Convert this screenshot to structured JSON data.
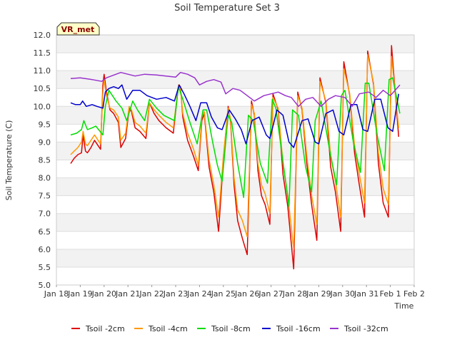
{
  "chart_data": {
    "type": "line",
    "title": "Soil Temperature Set 3",
    "xlabel": "Time",
    "ylabel": "Soil Temperature (C)",
    "badge": "VR_met",
    "colors": {
      "band": "#f2f2f2",
      "grid": "#dddddd",
      "badge_bg": "#ffffc8",
      "badge_border": "#333333"
    },
    "ylim": [
      5.0,
      12.0
    ],
    "xlim": [
      0,
      15
    ],
    "x_unit": "days since Jan 18",
    "yticks": [
      "5.0",
      "5.5",
      "6.0",
      "6.5",
      "7.0",
      "7.5",
      "8.0",
      "8.5",
      "9.0",
      "9.5",
      "10.0",
      "10.5",
      "11.0",
      "11.5",
      "12.0"
    ],
    "xticks": [
      "Jan 18",
      "Jan 19",
      "Jan 20",
      "Jan 21",
      "Jan 22",
      "Jan 23",
      "Jan 24",
      "Jan 25",
      "Jan 26",
      "Jan 27",
      "Jan 28",
      "Jan 29",
      "Jan 30",
      "Jan 31",
      "Feb 1",
      "Feb 2"
    ],
    "series": [
      {
        "name": "Tsoil -2cm",
        "color": "#dd0000",
        "x": [
          0.6,
          0.75,
          0.9,
          1.05,
          1.12,
          1.22,
          1.3,
          1.45,
          1.6,
          1.75,
          1.85,
          1.95,
          2.0,
          2.1,
          2.25,
          2.4,
          2.6,
          2.7,
          2.9,
          3.05,
          3.15,
          3.3,
          3.5,
          3.75,
          3.9,
          4.1,
          4.3,
          4.6,
          4.9,
          5.12,
          5.2,
          5.3,
          5.5,
          5.75,
          5.95,
          6.1,
          6.2,
          6.4,
          6.6,
          6.8,
          7.0,
          7.2,
          7.3,
          7.45,
          7.6,
          7.8,
          8.0,
          8.18,
          8.3,
          8.45,
          8.6,
          8.75,
          8.95,
          9.08,
          9.3,
          9.5,
          9.7,
          9.95,
          10.12,
          10.3,
          10.5,
          10.7,
          10.92,
          11.05,
          11.3,
          11.5,
          11.7,
          11.92,
          12.05,
          12.3,
          12.5,
          12.7,
          12.92,
          13.05,
          13.3,
          13.5,
          13.7,
          13.92,
          14.05,
          14.35
        ],
        "y": [
          8.4,
          8.55,
          8.65,
          8.7,
          9.2,
          8.75,
          8.7,
          8.85,
          9.05,
          8.9,
          8.8,
          10.6,
          10.9,
          10.4,
          9.9,
          9.8,
          9.55,
          8.85,
          9.1,
          9.95,
          9.85,
          9.4,
          9.3,
          9.1,
          10.1,
          9.8,
          9.6,
          9.4,
          9.25,
          10.6,
          10.55,
          9.7,
          9.05,
          8.6,
          8.2,
          9.6,
          9.8,
          8.3,
          7.6,
          6.5,
          8.5,
          10.0,
          9.6,
          7.8,
          6.8,
          6.3,
          5.85,
          10.15,
          9.75,
          8.2,
          7.5,
          7.25,
          6.7,
          10.35,
          9.9,
          8.1,
          7.2,
          5.45,
          10.4,
          9.9,
          8.4,
          7.25,
          6.25,
          10.8,
          10.1,
          8.3,
          7.6,
          6.5,
          11.25,
          10.3,
          8.7,
          7.8,
          6.9,
          11.55,
          10.6,
          8.4,
          7.3,
          6.9,
          11.7,
          9.15
        ]
      },
      {
        "name": "Tsoil -4cm",
        "color": "#ff9900",
        "x": [
          0.6,
          0.75,
          0.9,
          1.05,
          1.12,
          1.22,
          1.3,
          1.45,
          1.6,
          1.75,
          1.85,
          1.95,
          2.0,
          2.1,
          2.25,
          2.4,
          2.6,
          2.7,
          2.9,
          3.05,
          3.15,
          3.3,
          3.5,
          3.75,
          3.9,
          4.1,
          4.3,
          4.6,
          4.9,
          5.12,
          5.2,
          5.3,
          5.5,
          5.75,
          5.95,
          6.1,
          6.2,
          6.4,
          6.6,
          6.8,
          7.0,
          7.2,
          7.3,
          7.45,
          7.6,
          7.8,
          8.0,
          8.18,
          8.3,
          8.45,
          8.6,
          8.75,
          8.95,
          9.08,
          9.3,
          9.5,
          9.7,
          9.95,
          10.12,
          10.3,
          10.5,
          10.7,
          10.92,
          11.05,
          11.3,
          11.5,
          11.7,
          11.92,
          12.05,
          12.3,
          12.5,
          12.7,
          12.92,
          13.05,
          13.3,
          13.5,
          13.7,
          13.92,
          14.05,
          14.35
        ],
        "y": [
          8.65,
          8.75,
          8.85,
          9.0,
          9.3,
          8.95,
          8.9,
          9.05,
          9.2,
          9.05,
          8.95,
          10.4,
          10.75,
          10.3,
          9.95,
          9.9,
          9.7,
          9.05,
          9.25,
          10.0,
          9.9,
          9.55,
          9.45,
          9.25,
          10.1,
          9.9,
          9.75,
          9.55,
          9.4,
          10.6,
          10.5,
          9.8,
          9.25,
          8.8,
          8.35,
          9.7,
          9.85,
          8.5,
          7.8,
          6.9,
          8.6,
          9.95,
          9.65,
          8.0,
          7.1,
          6.8,
          6.35,
          10.05,
          9.8,
          8.4,
          7.8,
          7.55,
          7.0,
          10.25,
          9.95,
          8.4,
          7.5,
          6.0,
          10.3,
          9.95,
          8.6,
          7.5,
          6.7,
          10.7,
          10.15,
          8.6,
          7.9,
          6.9,
          11.05,
          10.35,
          8.9,
          8.1,
          7.3,
          11.45,
          10.65,
          8.7,
          7.7,
          7.25,
          11.4,
          9.4
        ]
      },
      {
        "name": "Tsoil -8cm",
        "color": "#00dd00",
        "x": [
          0.6,
          0.85,
          1.05,
          1.15,
          1.3,
          1.5,
          1.65,
          1.95,
          2.05,
          2.2,
          2.5,
          2.75,
          2.95,
          3.2,
          3.4,
          3.7,
          3.9,
          4.2,
          4.5,
          4.95,
          5.12,
          5.3,
          5.6,
          5.9,
          6.15,
          6.3,
          6.55,
          6.75,
          6.95,
          7.2,
          7.35,
          7.6,
          7.85,
          8.05,
          8.25,
          8.55,
          8.85,
          9.05,
          9.2,
          9.5,
          9.75,
          9.9,
          10.15,
          10.45,
          10.7,
          10.85,
          11.1,
          11.45,
          11.75,
          11.95,
          12.1,
          12.45,
          12.75,
          12.95,
          13.1,
          13.45,
          13.75,
          13.95,
          14.1,
          14.4
        ],
        "y": [
          9.2,
          9.25,
          9.35,
          9.6,
          9.35,
          9.4,
          9.45,
          9.2,
          10.0,
          10.45,
          10.15,
          9.95,
          9.6,
          10.15,
          9.9,
          9.6,
          10.2,
          9.95,
          9.75,
          9.6,
          10.55,
          10.2,
          9.55,
          8.95,
          9.9,
          9.9,
          9.0,
          8.35,
          7.9,
          9.75,
          9.55,
          8.4,
          7.45,
          9.75,
          9.6,
          8.4,
          7.85,
          10.2,
          9.95,
          8.45,
          7.2,
          9.9,
          9.75,
          8.3,
          7.6,
          9.6,
          10.15,
          8.8,
          7.8,
          10.3,
          10.45,
          9.0,
          8.15,
          10.65,
          10.65,
          9.2,
          8.2,
          10.75,
          10.8,
          9.8
        ]
      },
      {
        "name": "Tsoil -16cm",
        "color": "#0000cc",
        "x": [
          0.6,
          0.8,
          1.0,
          1.1,
          1.25,
          1.5,
          1.7,
          1.95,
          2.05,
          2.2,
          2.4,
          2.6,
          2.75,
          2.95,
          3.2,
          3.5,
          3.8,
          4.2,
          4.6,
          4.95,
          5.15,
          5.35,
          5.6,
          5.85,
          6.05,
          6.3,
          6.5,
          6.75,
          6.95,
          7.25,
          7.5,
          7.75,
          7.95,
          8.2,
          8.5,
          8.8,
          8.95,
          9.25,
          9.5,
          9.75,
          9.95,
          10.3,
          10.55,
          10.85,
          11.0,
          11.3,
          11.6,
          11.85,
          12.05,
          12.35,
          12.6,
          12.85,
          13.05,
          13.35,
          13.6,
          13.9,
          14.1,
          14.35
        ],
        "y": [
          10.1,
          10.05,
          10.05,
          10.15,
          10.0,
          10.05,
          10.0,
          9.95,
          10.4,
          10.5,
          10.55,
          10.5,
          10.6,
          10.2,
          10.45,
          10.45,
          10.3,
          10.2,
          10.25,
          10.15,
          10.6,
          10.35,
          10.0,
          9.6,
          10.1,
          10.1,
          9.7,
          9.4,
          9.35,
          9.9,
          9.65,
          9.35,
          8.95,
          9.6,
          9.7,
          9.2,
          9.1,
          9.9,
          9.75,
          9.0,
          8.85,
          9.6,
          9.65,
          9.0,
          8.95,
          9.8,
          9.9,
          9.3,
          9.2,
          10.05,
          10.05,
          9.35,
          9.3,
          10.2,
          10.2,
          9.4,
          9.3,
          10.35
        ]
      },
      {
        "name": "Tsoil -32cm",
        "color": "#9933cc",
        "x": [
          0.6,
          1.0,
          1.5,
          1.9,
          2.1,
          2.3,
          2.5,
          2.7,
          3.0,
          3.3,
          3.7,
          4.2,
          4.6,
          5.0,
          5.2,
          5.5,
          5.8,
          6.0,
          6.3,
          6.6,
          6.9,
          7.1,
          7.4,
          7.7,
          8.0,
          8.3,
          8.7,
          9.0,
          9.3,
          9.6,
          9.85,
          10.15,
          10.45,
          10.75,
          11.1,
          11.4,
          11.7,
          12.1,
          12.4,
          12.7,
          13.1,
          13.4,
          13.7,
          14.0,
          14.2,
          14.4
        ],
        "y": [
          10.78,
          10.8,
          10.75,
          10.7,
          10.8,
          10.85,
          10.9,
          10.95,
          10.9,
          10.85,
          10.9,
          10.88,
          10.85,
          10.82,
          10.95,
          10.9,
          10.8,
          10.6,
          10.7,
          10.75,
          10.68,
          10.35,
          10.5,
          10.45,
          10.3,
          10.15,
          10.3,
          10.35,
          10.4,
          10.3,
          10.25,
          10.0,
          10.2,
          10.25,
          10.0,
          10.2,
          10.3,
          10.25,
          10.0,
          10.35,
          10.4,
          10.25,
          10.45,
          10.3,
          10.45,
          10.6
        ]
      }
    ]
  }
}
